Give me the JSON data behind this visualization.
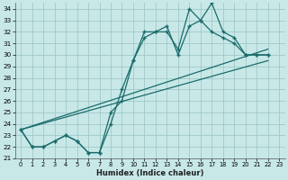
{
  "xlabel": "Humidex (Indice chaleur)",
  "bg_color": "#c8e8e8",
  "grid_color": "#a0c8c8",
  "line_color": "#1a6b6b",
  "xlim": [
    -0.5,
    23.5
  ],
  "ylim": [
    21,
    34.5
  ],
  "xticks": [
    0,
    1,
    2,
    3,
    4,
    5,
    6,
    7,
    8,
    9,
    10,
    11,
    12,
    13,
    14,
    15,
    16,
    17,
    18,
    19,
    20,
    21,
    22,
    23
  ],
  "yticks": [
    21,
    22,
    23,
    24,
    25,
    26,
    27,
    28,
    29,
    30,
    31,
    32,
    33,
    34
  ],
  "curve1_x": [
    0,
    1,
    2,
    3,
    4,
    5,
    6,
    7,
    8,
    9,
    10,
    11,
    12,
    13,
    14,
    15,
    16,
    17,
    18,
    19,
    20,
    21,
    22
  ],
  "curve1_y": [
    23.5,
    22,
    22,
    22.5,
    23,
    22.5,
    21.5,
    21.5,
    24,
    27,
    29.5,
    32,
    32,
    32,
    30.5,
    34,
    33,
    34.5,
    32,
    31.5,
    30,
    30,
    30
  ],
  "curve2_x": [
    0,
    1,
    2,
    3,
    4,
    5,
    6,
    7,
    8,
    9,
    10,
    11,
    12,
    13,
    14,
    15,
    16,
    17,
    18,
    19,
    20,
    21,
    22
  ],
  "curve2_y": [
    23.5,
    22,
    22,
    22.5,
    23,
    22.5,
    21.5,
    21.5,
    25,
    26,
    29.5,
    31.5,
    32,
    32.5,
    30,
    32.5,
    33,
    32,
    31.5,
    31,
    30,
    30,
    30
  ],
  "line1_x": [
    0,
    22
  ],
  "line1_y": [
    23.5,
    30.5
  ],
  "line2_x": [
    0,
    22
  ],
  "line2_y": [
    23.5,
    29.5
  ]
}
